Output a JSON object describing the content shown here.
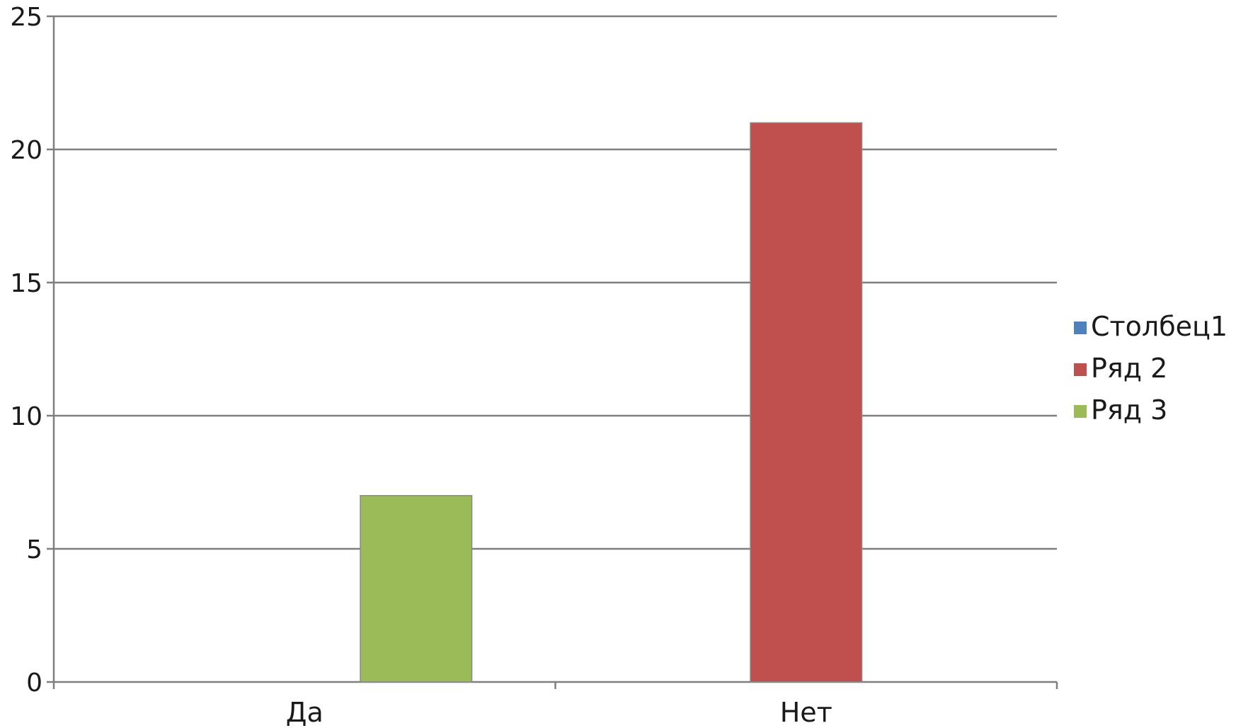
{
  "chart_data": {
    "type": "bar",
    "categories": [
      "Да",
      "Нет"
    ],
    "series": [
      {
        "name": "Столбец1",
        "color": "#4f81bd",
        "values": [
          0,
          0
        ]
      },
      {
        "name": "Ряд 2",
        "color": "#c0504d",
        "values": [
          0,
          21
        ]
      },
      {
        "name": "Ряд 3",
        "color": "#9bbb59",
        "values": [
          7,
          0
        ]
      }
    ],
    "ylim": [
      0,
      25
    ],
    "yticks": [
      0,
      5,
      10,
      15,
      20,
      25
    ],
    "grid": true,
    "legend_position": "right"
  }
}
